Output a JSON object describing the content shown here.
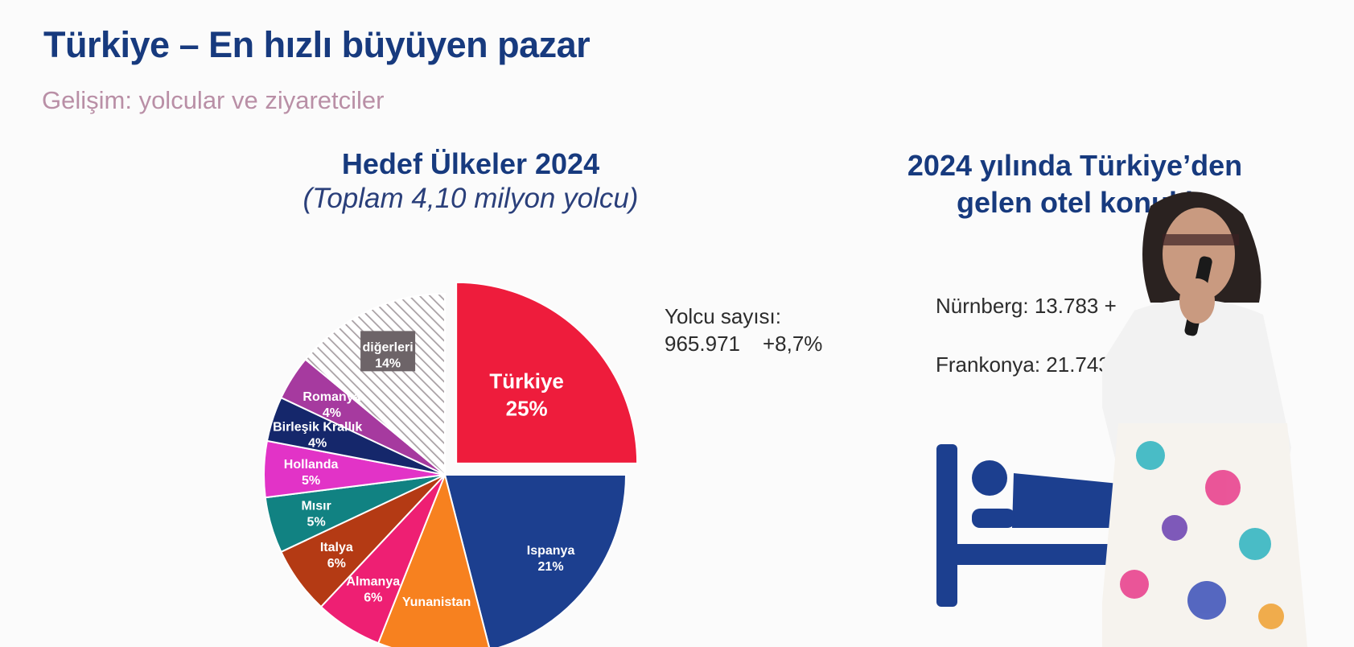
{
  "header": {
    "title": "Türkiye – En hızlı büyüyen pazar",
    "subtitle": "Gelişim: yolcular ve ziyaretciler"
  },
  "chart_data": {
    "type": "pie",
    "title": "Hedef Ülkeler 2024",
    "subtitle": "(Toplam 4,10 milyon yolcu)",
    "slices": [
      {
        "label": "Türkiye",
        "value": 25,
        "value_label": "25%",
        "color": "#ee1c3c",
        "exploded": true
      },
      {
        "label": "Ispanya",
        "value": 21,
        "value_label": "21%",
        "color": "#1c3f8f"
      },
      {
        "label": "Yunanistan",
        "value": 10,
        "value_label": "",
        "color": "#f7811f"
      },
      {
        "label": "Almanya",
        "value": 6,
        "value_label": "6%",
        "color": "#ee1f73"
      },
      {
        "label": "Italya",
        "value": 6,
        "value_label": "6%",
        "color": "#b43a14"
      },
      {
        "label": "Mısır",
        "value": 5,
        "value_label": "5%",
        "color": "#118282"
      },
      {
        "label": "Hollanda",
        "value": 5,
        "value_label": "5%",
        "color": "#e233c7"
      },
      {
        "label": "Birleşik Krallık",
        "value": 4,
        "value_label": "4%",
        "color": "#15276b"
      },
      {
        "label": "Romanya",
        "value": 4,
        "value_label": "4%",
        "color": "#a63a9f"
      },
      {
        "label": "diğerleri",
        "value": 14,
        "value_label": "14%",
        "color": "#bcb4b8",
        "pattern": "hatched"
      }
    ]
  },
  "passengers": {
    "label": "Yolcu sayısı:",
    "value": "965.971",
    "change": "+8,7%"
  },
  "hotel": {
    "title_line1": "2024 yılında Türkiye’den",
    "title_line2": "gelen otel konukl",
    "stats": [
      {
        "text": "Nürnberg: 13.783  +"
      },
      {
        "text": "Frankonya: 21.743"
      }
    ],
    "icon": "bed-icon",
    "accent": "#1c3f8f"
  }
}
